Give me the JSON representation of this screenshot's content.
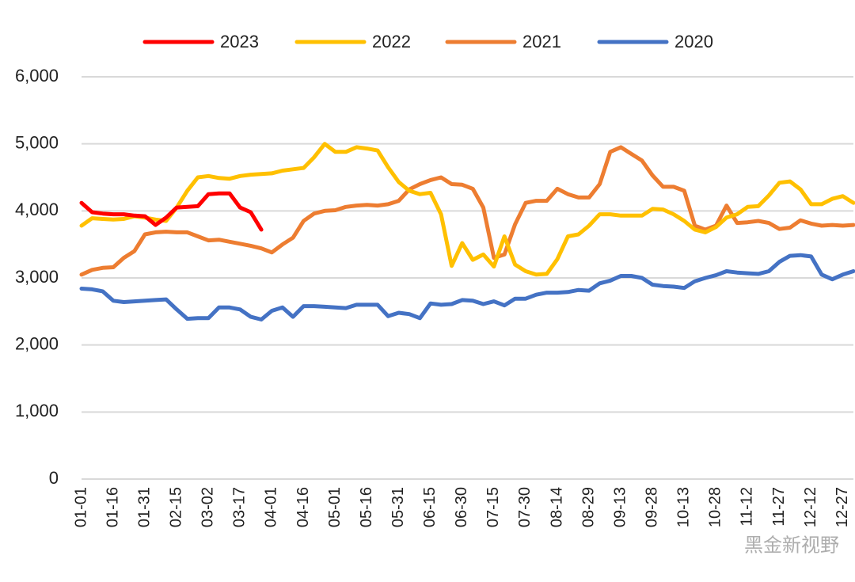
{
  "chart_data": {
    "type": "line",
    "categories": [
      "01-01",
      null,
      null,
      "01-16",
      null,
      null,
      "01-31",
      null,
      null,
      "02-15",
      null,
      null,
      "03-02",
      null,
      null,
      "03-17",
      null,
      null,
      "04-01",
      null,
      null,
      "04-16",
      null,
      null,
      "05-01",
      null,
      null,
      "05-16",
      null,
      null,
      "05-31",
      null,
      null,
      "06-15",
      null,
      null,
      "06-30",
      null,
      null,
      "07-15",
      null,
      null,
      "07-30",
      null,
      null,
      "08-14",
      null,
      null,
      "08-29",
      null,
      null,
      "09-13",
      null,
      null,
      "09-28",
      null,
      null,
      "10-13",
      null,
      null,
      "10-28",
      null,
      null,
      "11-12",
      null,
      null,
      "11-27",
      null,
      null,
      "12-12",
      null,
      null,
      "12-27",
      null
    ],
    "series": [
      {
        "name": "2023",
        "color": "#ff0000",
        "values": [
          4120,
          3980,
          3960,
          3950,
          3950,
          3930,
          3920,
          3790,
          3900,
          4050,
          4060,
          4070,
          4250,
          4260,
          4260,
          4050,
          3980,
          3720,
          null,
          null,
          null,
          null,
          null,
          null,
          null,
          null,
          null,
          null,
          null,
          null,
          null,
          null,
          null,
          null,
          null,
          null,
          null,
          null,
          null,
          null,
          null,
          null,
          null,
          null,
          null,
          null,
          null,
          null,
          null,
          null,
          null,
          null,
          null,
          null,
          null,
          null,
          null,
          null,
          null,
          null,
          null,
          null,
          null,
          null,
          null,
          null,
          null,
          null,
          null,
          null,
          null,
          null,
          null,
          null
        ]
      },
      {
        "name": "2022",
        "color": "#ffc000",
        "values": [
          3780,
          3890,
          3880,
          3870,
          3880,
          3920,
          3900,
          3870,
          3850,
          4050,
          4300,
          4500,
          4520,
          4490,
          4480,
          4520,
          4540,
          4550,
          4560,
          4600,
          4620,
          4640,
          4800,
          5000,
          4880,
          4880,
          4950,
          4930,
          4900,
          4650,
          4430,
          4300,
          4250,
          4270,
          3950,
          3180,
          3520,
          3270,
          3350,
          3170,
          3620,
          3200,
          3100,
          3050,
          3060,
          3280,
          3620,
          3650,
          3780,
          3950,
          3950,
          3930,
          3930,
          3930,
          4030,
          4020,
          3950,
          3850,
          3720,
          3680,
          3760,
          3900,
          3950,
          4060,
          4070,
          4230,
          4420,
          4440,
          4320,
          4100,
          4100,
          4180,
          4220,
          4120
        ]
      },
      {
        "name": "2021",
        "color": "#ed7d31",
        "values": [
          3050,
          3120,
          3150,
          3160,
          3300,
          3400,
          3650,
          3680,
          3690,
          3680,
          3680,
          3620,
          3560,
          3570,
          3540,
          3510,
          3480,
          3440,
          3380,
          3500,
          3600,
          3850,
          3960,
          4000,
          4010,
          4060,
          4080,
          4090,
          4080,
          4100,
          4150,
          4320,
          4400,
          4460,
          4500,
          4400,
          4390,
          4330,
          4050,
          3300,
          3350,
          3800,
          4120,
          4150,
          4150,
          4330,
          4250,
          4200,
          4200,
          4400,
          4880,
          4950,
          4850,
          4750,
          4530,
          4360,
          4360,
          4300,
          3780,
          3720,
          3780,
          4080,
          3820,
          3830,
          3850,
          3820,
          3730,
          3750,
          3860,
          3810,
          3780,
          3790,
          3780,
          3790
        ]
      },
      {
        "name": "2020",
        "color": "#4472c4",
        "values": [
          2840,
          2830,
          2800,
          2660,
          2640,
          2650,
          2660,
          2670,
          2680,
          2530,
          2390,
          2400,
          2400,
          2560,
          2560,
          2530,
          2420,
          2380,
          2510,
          2560,
          2420,
          2580,
          2580,
          2570,
          2560,
          2550,
          2600,
          2600,
          2600,
          2430,
          2480,
          2460,
          2400,
          2620,
          2600,
          2610,
          2670,
          2660,
          2610,
          2650,
          2590,
          2690,
          2690,
          2750,
          2780,
          2780,
          2790,
          2820,
          2810,
          2920,
          2960,
          3030,
          3030,
          3000,
          2900,
          2880,
          2870,
          2850,
          2950,
          3000,
          3040,
          3100,
          3080,
          3070,
          3060,
          3100,
          3240,
          3330,
          3340,
          3320,
          3050,
          2980,
          3050,
          3100
        ]
      }
    ],
    "ylim": [
      0,
      6000
    ],
    "yticks": [
      0,
      {
        "value": 1000,
        "label": "1,000"
      },
      {
        "value": 2000,
        "label": "2,000"
      },
      {
        "value": 3000,
        "label": "3,000"
      },
      {
        "value": 4000,
        "label": "4,000"
      },
      {
        "value": 5000,
        "label": "5,000"
      },
      {
        "value": 6000,
        "label": "6,000"
      }
    ],
    "grid": true,
    "legend": "top",
    "watermark": "黑金新视野"
  }
}
